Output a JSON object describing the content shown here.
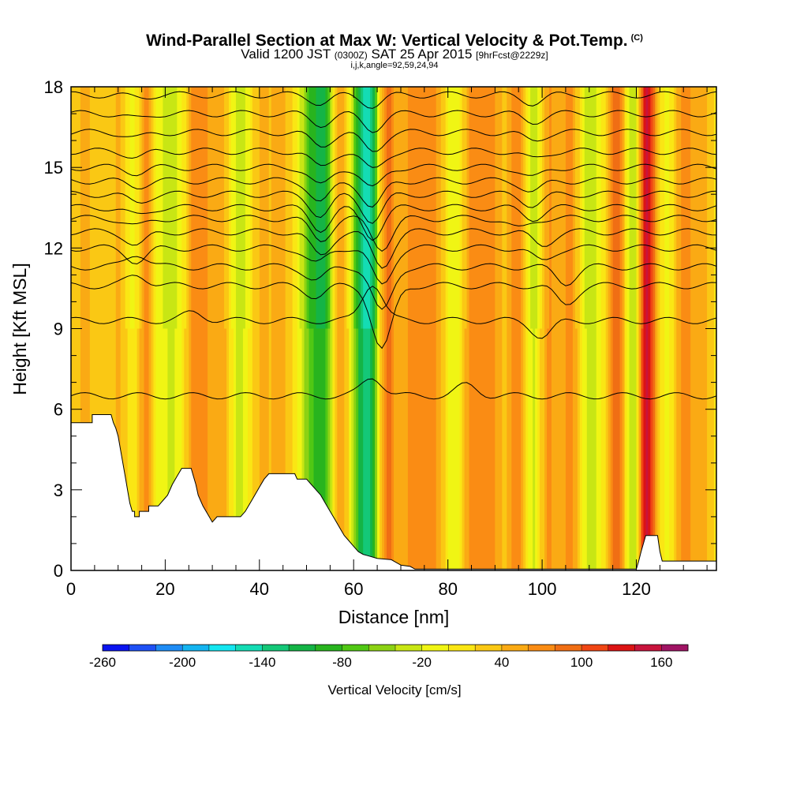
{
  "title": {
    "main": "Wind-Parallel Section at Max W: Vertical Velocity & Pot.Temp.",
    "copyright": "(C)",
    "valid_a": "Valid 1200 JST",
    "valid_b": "(0300Z)",
    "valid_c": "SAT 25 Apr 2015",
    "fcst": "[9hrFcst@2229z]",
    "params": "i,j,k,angle=92,59,24,94"
  },
  "chart_data": {
    "type": "heatmap",
    "title": "Wind-Parallel Section at Max W: Vertical Velocity & Pot.Temp.",
    "xlabel": "Distance [nm]",
    "ylabel": "Height [Kft MSL]",
    "xlim": [
      0,
      137
    ],
    "ylim": [
      0,
      18
    ],
    "x_ticks": [
      0,
      20,
      40,
      60,
      80,
      100,
      120
    ],
    "y_ticks": [
      0,
      3,
      6,
      9,
      12,
      15,
      18
    ],
    "colorbar": {
      "label": "Vertical Velocity [cm/s]",
      "tick_values": [
        -260,
        -200,
        -140,
        -80,
        -20,
        40,
        100,
        160
      ],
      "bins": [
        -260,
        -240,
        -220,
        -200,
        -180,
        -160,
        -140,
        -120,
        -100,
        -80,
        -60,
        -40,
        -20,
        0,
        20,
        40,
        60,
        80,
        100,
        120,
        140,
        160,
        180
      ],
      "colors": [
        "#0a14f0",
        "#1e50f5",
        "#1e8cf5",
        "#14b4f0",
        "#14e6f0",
        "#14dcb4",
        "#14c878",
        "#14b446",
        "#28b41e",
        "#50c814",
        "#8cd214",
        "#c8e614",
        "#f0f514",
        "#fae614",
        "#fac814",
        "#faaa14",
        "#fa8c14",
        "#f06e14",
        "#f04614",
        "#dc1414",
        "#c8143c",
        "#a01464"
      ]
    },
    "velocity_bands": [
      {
        "x": 3,
        "width": 3,
        "w": 40
      },
      {
        "x": 11,
        "width": 3,
        "w": 55
      },
      {
        "x": 13,
        "width": 2.5,
        "w": -45
      },
      {
        "x": 16,
        "width": 2,
        "w": 80
      },
      {
        "x": 18,
        "width": 2,
        "w": -25
      },
      {
        "x": 22,
        "width": 2.5,
        "w": -30
      },
      {
        "x": 27,
        "width": 3,
        "w": 70
      },
      {
        "x": 32,
        "width": 2.5,
        "w": 45
      },
      {
        "x": 36,
        "width": 2.5,
        "w": -40
      },
      {
        "x": 40,
        "width": 3,
        "w": 35
      },
      {
        "x": 45,
        "width": 3,
        "w": 35
      },
      {
        "x": 51,
        "width": 2.5,
        "w": -70
      },
      {
        "x": 54,
        "width": 2,
        "w": -90
      },
      {
        "x": 57,
        "width": 2.5,
        "w": 60
      },
      {
        "x": 62,
        "width": 2.5,
        "w": -110
      },
      {
        "x": 64,
        "width": 2,
        "w": -60
      },
      {
        "x": 67,
        "width": 2.2,
        "w": 85
      },
      {
        "x": 73,
        "width": 3,
        "w": 65
      },
      {
        "x": 77,
        "width": 2.5,
        "w": 55
      },
      {
        "x": 82,
        "width": 2.5,
        "w": -30
      },
      {
        "x": 85,
        "width": 2.5,
        "w": 70
      },
      {
        "x": 89,
        "width": 2.5,
        "w": 60
      },
      {
        "x": 95,
        "width": 2.5,
        "w": 80
      },
      {
        "x": 98,
        "width": 2.5,
        "w": -60
      },
      {
        "x": 101,
        "width": 2.5,
        "w": 65
      },
      {
        "x": 106,
        "width": 2.5,
        "w": 60
      },
      {
        "x": 110,
        "width": 2.5,
        "w": -35
      },
      {
        "x": 116,
        "width": 2,
        "w": 100
      },
      {
        "x": 119,
        "width": 2,
        "w": -50
      },
      {
        "x": 122,
        "width": 1.5,
        "w": 130
      },
      {
        "x": 124,
        "width": 2,
        "w": 55
      },
      {
        "x": 126,
        "width": 2,
        "w": -30
      },
      {
        "x": 130,
        "width": 2.5,
        "w": 60
      },
      {
        "x": 134,
        "width": 2.5,
        "w": 40
      }
    ],
    "terrain": [
      [
        0,
        5.5
      ],
      [
        4.5,
        5.5
      ],
      [
        4.5,
        5.8
      ],
      [
        8.5,
        5.8
      ],
      [
        9,
        5.5
      ],
      [
        9.5,
        5.3
      ],
      [
        10,
        5
      ],
      [
        10.5,
        4.5
      ],
      [
        11,
        4
      ],
      [
        11.5,
        3.5
      ],
      [
        12,
        3
      ],
      [
        12.5,
        2.5
      ],
      [
        13,
        2.2
      ],
      [
        13.5,
        2.2
      ],
      [
        13.5,
        2
      ],
      [
        14.5,
        2
      ],
      [
        14.5,
        2.2
      ],
      [
        16.5,
        2.2
      ],
      [
        16.5,
        2.4
      ],
      [
        18.5,
        2.4
      ],
      [
        19.5,
        2.6
      ],
      [
        20.5,
        2.8
      ],
      [
        21.5,
        3.2
      ],
      [
        22.5,
        3.5
      ],
      [
        23.5,
        3.8
      ],
      [
        25.5,
        3.8
      ],
      [
        26,
        3.5
      ],
      [
        26.5,
        3.2
      ],
      [
        27,
        2.8
      ],
      [
        28,
        2.4
      ],
      [
        29,
        2.1
      ],
      [
        30,
        1.8
      ],
      [
        31,
        2
      ],
      [
        36,
        2
      ],
      [
        37,
        2.2
      ],
      [
        38,
        2.5
      ],
      [
        39,
        2.8
      ],
      [
        40,
        3.1
      ],
      [
        41,
        3.4
      ],
      [
        42,
        3.6
      ],
      [
        47.5,
        3.6
      ],
      [
        48,
        3.4
      ],
      [
        50,
        3.4
      ],
      [
        51,
        3.2
      ],
      [
        52,
        3
      ],
      [
        53,
        2.8
      ],
      [
        54,
        2.5
      ],
      [
        55,
        2.2
      ],
      [
        56,
        1.9
      ],
      [
        57,
        1.6
      ],
      [
        58,
        1.3
      ],
      [
        59,
        1.1
      ],
      [
        60,
        0.9
      ],
      [
        61,
        0.7
      ],
      [
        62,
        0.6
      ],
      [
        63,
        0.55
      ],
      [
        64,
        0.5
      ],
      [
        65,
        0.45
      ],
      [
        68,
        0.4
      ],
      [
        69,
        0.3
      ],
      [
        70,
        0.2
      ],
      [
        72,
        0.15
      ],
      [
        73,
        0.05
      ],
      [
        118,
        0.05
      ],
      [
        120,
        0.05
      ],
      [
        120.5,
        0.35
      ],
      [
        121,
        0.7
      ],
      [
        122,
        1.3
      ],
      [
        124.5,
        1.3
      ],
      [
        125,
        0.7
      ],
      [
        125.5,
        0.35
      ],
      [
        126,
        0.35
      ],
      [
        137,
        0.35
      ]
    ],
    "theta_isolines": [
      {
        "z": 6.5,
        "ridges": [
          [
            0,
            0
          ],
          [
            64,
            0.7
          ],
          [
            84,
            0.4
          ]
        ]
      },
      {
        "z": 9.3,
        "ridges": [
          [
            26,
            0.3
          ],
          [
            64,
            1.4
          ],
          [
            100,
            -0.6
          ]
        ]
      },
      {
        "z": 10.6,
        "ridges": [
          [
            14,
            0.4
          ],
          [
            52,
            -0.4
          ],
          [
            66,
            -2.4
          ],
          [
            105,
            -0.7
          ]
        ]
      },
      {
        "z": 11.3,
        "ridges": [
          [
            14,
            0.5
          ],
          [
            52,
            -0.5
          ],
          [
            66,
            -1.7
          ],
          [
            105,
            -0.6
          ]
        ]
      },
      {
        "z": 12.0,
        "ridges": [
          [
            14,
            -0.5
          ],
          [
            52,
            -0.6
          ],
          [
            66,
            -1.4
          ],
          [
            100,
            -0.5
          ]
        ]
      },
      {
        "z": 12.6,
        "ridges": [
          [
            14,
            -0.5
          ],
          [
            53,
            -0.9
          ],
          [
            66,
            -1.3
          ],
          [
            100,
            -0.5
          ]
        ]
      },
      {
        "z": 13.1,
        "ridges": [
          [
            14,
            -0.3
          ],
          [
            53,
            -0.8
          ],
          [
            66,
            -1.1
          ],
          [
            95,
            -0.4
          ]
        ]
      },
      {
        "z": 13.5,
        "ridges": [
          [
            14,
            -0.3
          ],
          [
            53,
            -0.8
          ],
          [
            64,
            -1.1
          ],
          [
            98,
            -0.4
          ]
        ]
      },
      {
        "z": 14.0,
        "ridges": [
          [
            14,
            -0.3
          ],
          [
            53,
            -0.8
          ],
          [
            64,
            -1.0
          ],
          [
            98,
            -0.4
          ]
        ]
      },
      {
        "z": 14.5,
        "ridges": [
          [
            14,
            -0.2
          ],
          [
            53,
            -0.8
          ],
          [
            64,
            -1.0
          ],
          [
            98,
            -0.4
          ]
        ]
      },
      {
        "z": 15.0,
        "ridges": [
          [
            14,
            -0.2
          ],
          [
            53,
            -0.7
          ],
          [
            64,
            -0.8
          ],
          [
            98,
            -0.4
          ]
        ]
      },
      {
        "z": 15.6,
        "ridges": [
          [
            14,
            -0.2
          ],
          [
            53,
            -0.6
          ],
          [
            64,
            -0.7
          ],
          [
            98,
            -0.3
          ]
        ]
      },
      {
        "z": 16.3,
        "ridges": [
          [
            14,
            -0.2
          ],
          [
            53,
            -0.5
          ],
          [
            64,
            -0.7
          ],
          [
            98,
            -0.3
          ]
        ]
      },
      {
        "z": 17.0,
        "ridges": [
          [
            14,
            -0.2
          ],
          [
            53,
            -0.4
          ],
          [
            64,
            -0.6
          ],
          [
            98,
            -0.3
          ]
        ]
      },
      {
        "z": 17.7,
        "ridges": [
          [
            14,
            -0.1
          ],
          [
            53,
            -0.3
          ],
          [
            64,
            -0.4
          ],
          [
            98,
            -0.3
          ]
        ]
      }
    ]
  }
}
